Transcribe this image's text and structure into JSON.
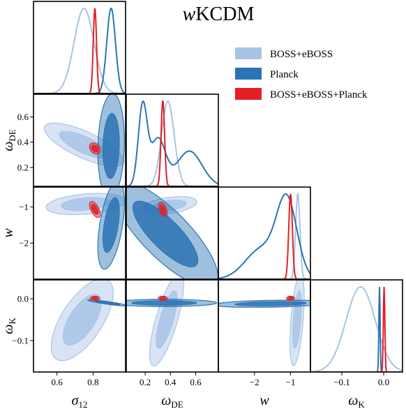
{
  "chart_data": {
    "type": "triangle",
    "title_italic": "w",
    "title_rest": "KCDM",
    "parameters": [
      "sigma_12",
      "omega_DE",
      "w",
      "omega_K"
    ],
    "axis_labels": {
      "sigma_12": {
        "main": "σ",
        "sub": "12"
      },
      "omega_DE": {
        "main": "ω",
        "sub": "DE"
      },
      "w": {
        "main": "w",
        "sub": ""
      },
      "omega_K": {
        "main": "ω",
        "sub": "K"
      }
    },
    "ranges": {
      "sigma_12": [
        0.47,
        0.98
      ],
      "omega_DE": [
        0.05,
        0.78
      ],
      "w": [
        -3.0,
        -0.45
      ],
      "omega_K": [
        -0.175,
        0.045
      ]
    },
    "ticks": {
      "sigma_12": [
        {
          "v": 0.6,
          "t": "0.6"
        },
        {
          "v": 0.8,
          "t": "0.8"
        }
      ],
      "omega_DE": [
        {
          "v": 0.2,
          "t": "0.2"
        },
        {
          "v": 0.4,
          "t": "0.4"
        },
        {
          "v": 0.6,
          "t": "0.6"
        }
      ],
      "w": [
        {
          "v": -2,
          "t": "−2"
        },
        {
          "v": -1,
          "t": "−1"
        }
      ],
      "omega_K": [
        {
          "v": -0.1,
          "t": "−0.1"
        },
        {
          "v": 0.0,
          "t": "0.0"
        }
      ]
    },
    "colors": {
      "boss": "#a8c4e5",
      "planck": "#2b73b4",
      "combined": "#e21f26"
    },
    "legend": {
      "placement": "top-right",
      "entries": [
        {
          "label": "BOSS+eBOSS",
          "color": "#a8c4e5"
        },
        {
          "label": "Planck",
          "color": "#2b73b4"
        },
        {
          "label": "BOSS+eBOSS+Planck",
          "color": "#e21f26"
        }
      ]
    },
    "marginals": {
      "sigma_12": [
        {
          "series": "boss",
          "components": [
            {
              "m": 0.75,
              "s": 0.055
            }
          ]
        },
        {
          "series": "planck",
          "components": [
            {
              "m": 0.9,
              "s": 0.024
            }
          ]
        },
        {
          "series": "combined",
          "components": [
            {
              "m": 0.81,
              "s": 0.009
            }
          ]
        }
      ],
      "omega_DE": [
        {
          "series": "boss",
          "components": [
            {
              "m": 0.38,
              "s": 0.05,
              "w": 1
            }
          ]
        },
        {
          "series": "planck",
          "components": [
            {
              "m": 0.18,
              "s": 0.035,
              "w": 1
            },
            {
              "m": 0.3,
              "s": 0.06,
              "w": 0.6
            },
            {
              "m": 0.55,
              "s": 0.1,
              "w": 0.45
            }
          ]
        },
        {
          "series": "combined",
          "components": [
            {
              "m": 0.34,
              "s": 0.014
            }
          ]
        }
      ],
      "w": [
        {
          "series": "boss",
          "components": [
            {
              "m": -0.8,
              "s": 0.06
            }
          ]
        },
        {
          "series": "planck",
          "components": [
            {
              "m": -1.1,
              "s": 0.28,
              "w": 1
            },
            {
              "m": -1.8,
              "s": 0.45,
              "w": 0.4
            }
          ]
        },
        {
          "series": "combined",
          "components": [
            {
              "m": -1.0,
              "s": 0.05
            }
          ]
        }
      ],
      "omega_K": [
        {
          "series": "boss",
          "components": [
            {
              "m": -0.055,
              "s": 0.035
            }
          ]
        },
        {
          "series": "planck",
          "components": [
            {
              "m": -0.01,
              "s": 0.0015
            }
          ]
        },
        {
          "series": "combined",
          "components": [
            {
              "m": 0.001,
              "s": 0.0018
            }
          ]
        }
      ]
    },
    "contours": [
      {
        "x": "sigma_12",
        "y": "omega_DE",
        "series": "boss",
        "cx": 0.75,
        "cy": 0.38,
        "sx": 0.09,
        "sy": 0.07,
        "rho": -0.75
      },
      {
        "x": "sigma_12",
        "y": "omega_DE",
        "series": "planck",
        "cx": 0.9,
        "cy": 0.37,
        "sx": 0.03,
        "sy": 0.17,
        "rho": 0.1
      },
      {
        "x": "sigma_12",
        "y": "omega_DE",
        "series": "combined",
        "cx": 0.81,
        "cy": 0.35,
        "sx": 0.012,
        "sy": 0.018,
        "rho": -0.3
      },
      {
        "x": "sigma_12",
        "y": "w",
        "series": "boss",
        "cx": 0.76,
        "cy": -0.92,
        "sx": 0.09,
        "sy": 0.12,
        "rho": 0.3
      },
      {
        "x": "sigma_12",
        "y": "w",
        "series": "planck",
        "cx": 0.9,
        "cy": -1.5,
        "sx": 0.03,
        "sy": 0.5,
        "rho": 0.5
      },
      {
        "x": "sigma_12",
        "y": "w",
        "series": "combined",
        "cx": 0.81,
        "cy": -1.07,
        "sx": 0.012,
        "sy": 0.09,
        "rho": -0.6
      },
      {
        "x": "sigma_12",
        "y": "omega_K",
        "series": "boss",
        "cx": 0.74,
        "cy": -0.05,
        "sx": 0.07,
        "sy": 0.04,
        "rho": 0.65
      },
      {
        "x": "sigma_12",
        "y": "omega_K",
        "series": "planck",
        "cx": 0.88,
        "cy": -0.01,
        "sx": 0.045,
        "sy": 0.003,
        "rho": -0.9
      },
      {
        "x": "sigma_12",
        "y": "omega_K",
        "series": "combined",
        "cx": 0.81,
        "cy": 0.001,
        "sx": 0.01,
        "sy": 0.002,
        "rho": 0.0
      },
      {
        "x": "omega_DE",
        "y": "w",
        "series": "boss",
        "cx": 0.39,
        "cy": -0.96,
        "sx": 0.09,
        "sy": 0.1,
        "rho": 0.4
      },
      {
        "x": "omega_DE",
        "y": "w",
        "series": "planck",
        "cx": 0.36,
        "cy": -1.75,
        "sx": 0.17,
        "sy": 0.6,
        "rho": -0.8
      },
      {
        "x": "omega_DE",
        "y": "w",
        "series": "combined",
        "cx": 0.34,
        "cy": -1.07,
        "sx": 0.014,
        "sy": 0.08,
        "rho": -0.5
      },
      {
        "x": "omega_DE",
        "y": "omega_K",
        "series": "boss",
        "cx": 0.37,
        "cy": -0.05,
        "sx": 0.055,
        "sy": 0.045,
        "rho": 0.75
      },
      {
        "x": "omega_DE",
        "y": "omega_K",
        "series": "planck",
        "cx": 0.35,
        "cy": -0.01,
        "sx": 0.17,
        "sy": 0.0035,
        "rho": 0.0
      },
      {
        "x": "omega_DE",
        "y": "omega_K",
        "series": "combined",
        "cx": 0.34,
        "cy": 0.001,
        "sx": 0.015,
        "sy": 0.002,
        "rho": 0.0
      },
      {
        "x": "w",
        "y": "omega_K",
        "series": "boss",
        "cx": -0.82,
        "cy": -0.05,
        "sx": 0.08,
        "sy": 0.045,
        "rho": 0.5
      },
      {
        "x": "w",
        "y": "omega_K",
        "series": "planck",
        "cx": -1.55,
        "cy": -0.012,
        "sx": 0.65,
        "sy": 0.0035,
        "rho": 0.3
      },
      {
        "x": "w",
        "y": "omega_K",
        "series": "combined",
        "cx": -1.0,
        "cy": 0.001,
        "sx": 0.045,
        "sy": 0.002,
        "rho": 0.0
      }
    ]
  }
}
